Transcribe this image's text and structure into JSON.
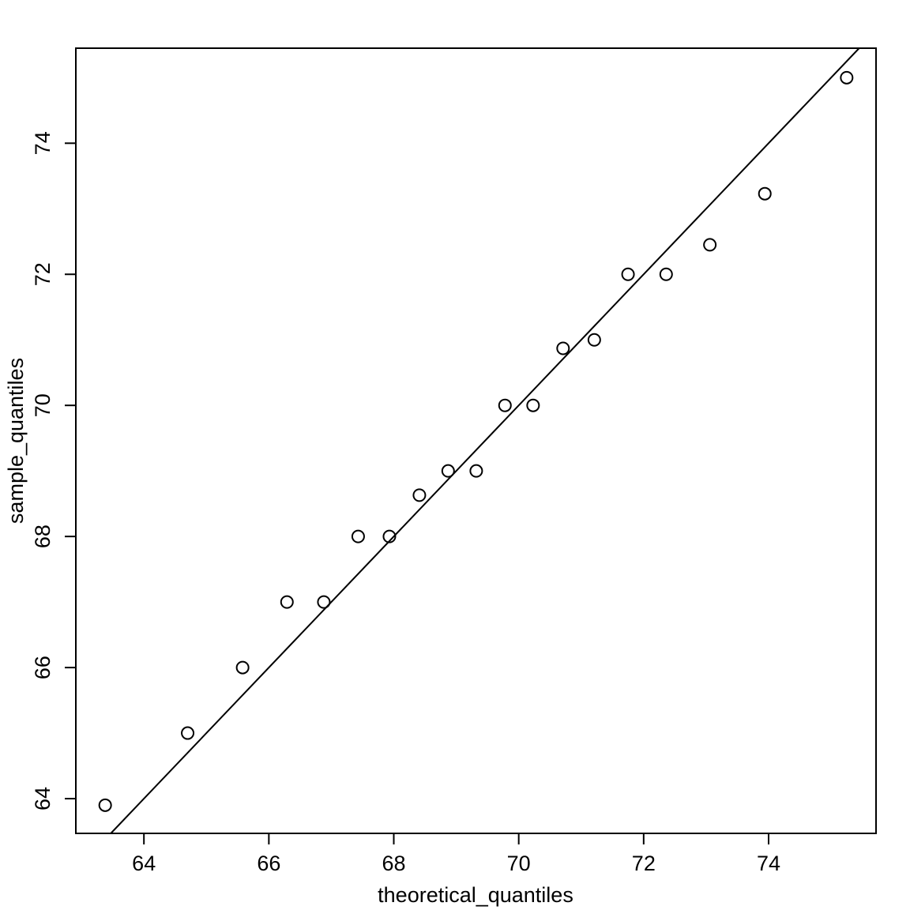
{
  "chart_data": {
    "type": "scatter",
    "x_label": "theoretical_quantiles",
    "y_label": "sample_quantiles",
    "x": [
      63.38,
      64.7,
      65.58,
      66.29,
      66.88,
      67.43,
      67.93,
      68.41,
      68.87,
      69.32,
      69.78,
      70.23,
      70.71,
      71.21,
      71.75,
      72.36,
      73.06,
      73.94,
      75.25
    ],
    "values": [
      63.9,
      65,
      66,
      67,
      67,
      68,
      68,
      68.63,
      69,
      69,
      70,
      70,
      70.87,
      71,
      72,
      72,
      72.45,
      73.23,
      75
    ],
    "color": "#000000",
    "reference_line": {
      "intercept": 0,
      "slope": 1
    },
    "xlim": [
      62.91,
      75.72
    ],
    "ylim": [
      63.47,
      75.45
    ],
    "xticks": [
      64,
      66,
      68,
      70,
      72,
      74
    ],
    "yticks": [
      64,
      66,
      68,
      70,
      72,
      74
    ]
  }
}
